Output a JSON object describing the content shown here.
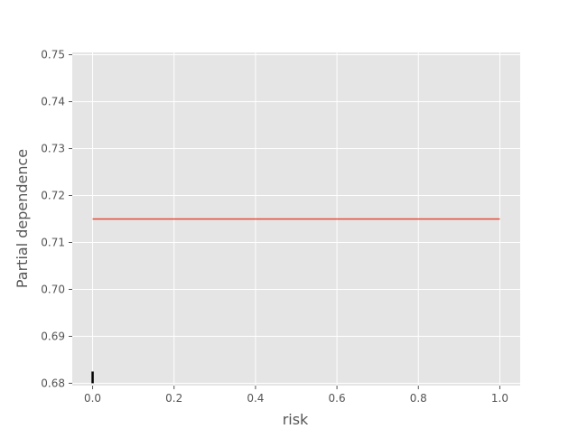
{
  "chart_data": {
    "type": "line",
    "title": "",
    "xlabel": "risk",
    "ylabel": "Partial dependence",
    "xlim": [
      -0.05,
      1.05
    ],
    "ylim": [
      0.6795,
      0.7505
    ],
    "x_ticks": [
      0.0,
      0.2,
      0.4,
      0.6,
      0.8,
      1.0
    ],
    "x_tick_labels": [
      "0.0",
      "0.2",
      "0.4",
      "0.6",
      "0.8",
      "1.0"
    ],
    "y_ticks": [
      0.68,
      0.69,
      0.7,
      0.71,
      0.72,
      0.73,
      0.74,
      0.75
    ],
    "y_tick_labels": [
      "0.68",
      "0.69",
      "0.70",
      "0.71",
      "0.72",
      "0.73",
      "0.74",
      "0.75"
    ],
    "grid": true,
    "series": [
      {
        "name": "partial dependence",
        "x": [
          0.0,
          1.0
        ],
        "y": [
          0.715,
          0.715
        ],
        "color": "#E24A33"
      }
    ],
    "rug": {
      "x": [
        0.0
      ],
      "y_range": [
        0.68,
        0.6825
      ],
      "color": "#000000"
    },
    "background_color": "#E5E5E5",
    "grid_color": "#FFFFFF",
    "text_color": "#555555"
  }
}
